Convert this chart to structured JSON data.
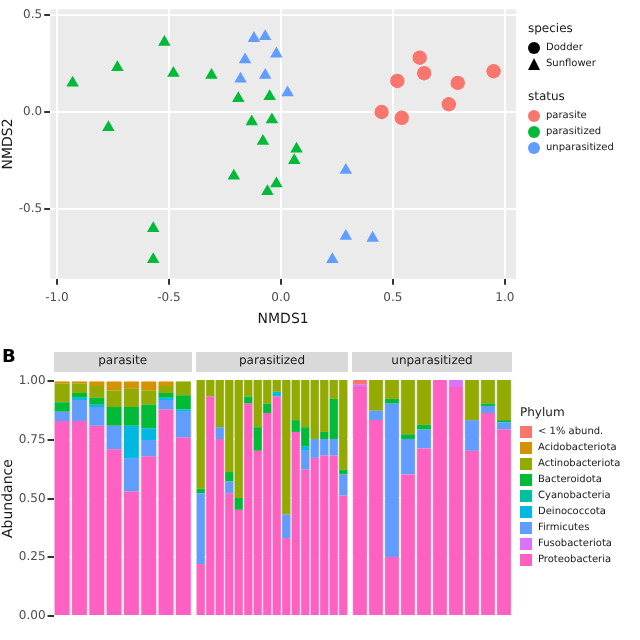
{
  "chart_data": [
    {
      "type": "scatter",
      "xlabel": "NMDS1",
      "ylabel": "NMDS2",
      "legend": "right",
      "legend_title": "status",
      "annotations": [
        "species",
        "Dodder",
        "Sunflower"
      ],
      "grid": true,
      "xlim": [
        -1.03,
        1.05
      ],
      "xticks": [
        {
          "value": -1,
          "label": "-1.0"
        },
        {
          "value": -0.5,
          "label": "-0.5"
        },
        {
          "value": 0,
          "label": "0.0"
        },
        {
          "value": 0.5,
          "label": "0.5"
        },
        {
          "value": 1,
          "label": "1.0"
        }
      ],
      "ylim": [
        -0.86,
        0.53
      ],
      "yticks": [
        {
          "value": -0.5,
          "label": "-0.5"
        },
        {
          "value": 0,
          "label": "0.0"
        },
        {
          "value": 0.5,
          "label": "0.5"
        }
      ],
      "series": [
        {
          "name": "parasite",
          "color": "#f8766d",
          "marker": "circle",
          "x": [
            0.62,
            0.64,
            0.52,
            0.79,
            0.45,
            0.54,
            0.75,
            0.95
          ],
          "values": [
            0.28,
            0.2,
            0.16,
            0.15,
            0,
            -0.03,
            0.04,
            0.21
          ]
        },
        {
          "name": "parasitized",
          "color": "#00ba38",
          "marker": "triangle",
          "x": [
            -0.52,
            -0.73,
            -0.93,
            -0.48,
            -0.31,
            -0.77,
            -0.19,
            -0.05,
            -0.13,
            -0.04,
            -0.08,
            0.07,
            0.06,
            -0.21,
            -0.02,
            -0.06,
            -0.57,
            -0.57
          ],
          "values": [
            0.36,
            0.23,
            0.15,
            0.2,
            0.19,
            -0.08,
            0.07,
            0.08,
            -0.05,
            -0.04,
            -0.15,
            -0.19,
            -0.25,
            -0.33,
            -0.37,
            -0.41,
            -0.6,
            -0.76
          ]
        },
        {
          "name": "unparasitized",
          "color": "#619cff",
          "marker": "triangle",
          "x": [
            -0.12,
            -0.07,
            -0.02,
            -0.16,
            -0.07,
            -0.18,
            0.03,
            0.29,
            0.29,
            0.41,
            0.23
          ],
          "values": [
            0.38,
            0.39,
            0.3,
            0.27,
            0.19,
            0.17,
            0.1,
            -0.3,
            -0.64,
            -0.65,
            -0.76
          ]
        }
      ]
    },
    {
      "type": "bar",
      "stacked": true,
      "title": "parasite",
      "ylabel": "Abundance",
      "annotations": [
        "B"
      ],
      "tick_labels": "y",
      "grid": "y",
      "ylim": [
        0,
        1
      ],
      "yticks": [
        {
          "value": 0,
          "label": "0.00"
        },
        {
          "value": 0.25,
          "label": "0.25"
        },
        {
          "value": 0.5,
          "label": "0.50"
        },
        {
          "value": 0.75,
          "label": "0.75"
        },
        {
          "value": 1,
          "label": "1.00"
        }
      ],
      "categories": [
        null,
        null,
        null,
        null,
        null,
        null,
        null,
        null
      ],
      "series": [
        {
          "color": "#ff61c3",
          "values": [
            0.83,
            0.83,
            0.81,
            0.71,
            0.53,
            0.68,
            0.88,
            0.76
          ]
        },
        {
          "color": "#db72fb",
          "values": [
            0,
            0,
            0,
            0,
            0,
            0,
            0,
            0
          ]
        },
        {
          "color": "#619cff",
          "values": [
            0.04,
            0.09,
            0.08,
            0.1,
            0.14,
            0.07,
            0.04,
            0.11
          ]
        },
        {
          "color": "#00b9e3",
          "values": [
            0,
            0.01,
            0.01,
            0,
            0.14,
            0.05,
            0.01,
            0.01
          ]
        },
        {
          "color": "#00c19f",
          "values": [
            0,
            0,
            0,
            0,
            0,
            0,
            0,
            0
          ]
        },
        {
          "color": "#00ba38",
          "values": [
            0.04,
            0.02,
            0.03,
            0.08,
            0.08,
            0.1,
            0.02,
            0.06
          ]
        },
        {
          "color": "#93aa00",
          "values": [
            0.08,
            0.04,
            0.05,
            0.07,
            0.08,
            0.06,
            0.03,
            0.06
          ]
        },
        {
          "color": "#d39200",
          "values": [
            0.01,
            0.01,
            0.02,
            0.04,
            0.03,
            0.04,
            0.02,
            0
          ]
        },
        {
          "color": "#f8766d",
          "values": [
            0,
            0,
            0,
            0,
            0,
            0,
            0,
            0
          ]
        }
      ]
    },
    {
      "type": "bar",
      "stacked": true,
      "title": "parasitized",
      "tick_labels": false,
      "grid": "y",
      "ylim": [
        0,
        1
      ],
      "yticks": [
        0,
        0.25,
        0.5,
        0.75,
        1
      ],
      "categories": [
        null,
        null,
        null,
        null,
        null,
        null,
        null,
        null,
        null,
        null,
        null,
        null,
        null,
        null,
        null,
        null
      ],
      "series": [
        {
          "color": "#ff61c3",
          "values": [
            0.22,
            0.93,
            0.75,
            0.52,
            0.45,
            0.9,
            0.7,
            0.86,
            0.93,
            0.33,
            0.78,
            0.62,
            0.67,
            0.68,
            0.68,
            0.51
          ]
        },
        {
          "color": "#db72fb",
          "values": [
            0,
            0,
            0,
            0,
            0,
            0,
            0,
            0,
            0,
            0,
            0,
            0,
            0,
            0,
            0,
            0
          ]
        },
        {
          "color": "#619cff",
          "values": [
            0.3,
            0,
            0.05,
            0.05,
            0,
            0,
            0,
            0,
            0,
            0.1,
            0,
            0.08,
            0.08,
            0.07,
            0.07,
            0.09
          ]
        },
        {
          "color": "#00b9e3",
          "values": [
            0,
            0,
            0,
            0,
            0,
            0,
            0,
            0,
            0.02,
            0,
            0,
            0.02,
            0,
            0,
            0,
            0
          ]
        },
        {
          "color": "#00c19f",
          "values": [
            0,
            0,
            0,
            0,
            0,
            0,
            0,
            0,
            0,
            0,
            0,
            0,
            0,
            0,
            0,
            0
          ]
        },
        {
          "color": "#00ba38",
          "values": [
            0.02,
            0,
            0,
            0.04,
            0.05,
            0.03,
            0.1,
            0.04,
            0,
            0,
            0.05,
            0.08,
            0,
            0.03,
            0.17,
            0.02
          ]
        },
        {
          "color": "#93aa00",
          "values": [
            0.46,
            0.07,
            0.2,
            0.39,
            0.5,
            0.07,
            0.2,
            0.1,
            0.05,
            0.57,
            0.17,
            0.2,
            0.25,
            0.22,
            0.08,
            0.38
          ]
        },
        {
          "color": "#d39200",
          "values": [
            0,
            0,
            0,
            0,
            0,
            0,
            0,
            0,
            0,
            0,
            0,
            0,
            0,
            0,
            0,
            0
          ]
        },
        {
          "color": "#f8766d",
          "values": [
            0,
            0,
            0,
            0,
            0,
            0,
            0,
            0,
            0,
            0,
            0,
            0,
            0,
            0,
            0,
            0
          ]
        }
      ]
    },
    {
      "type": "bar",
      "stacked": true,
      "title": "unparasitized",
      "tick_labels": false,
      "grid": "y",
      "legend": "right",
      "legend_title": "Phylum",
      "ylim": [
        0,
        1
      ],
      "yticks": [
        0,
        0.25,
        0.5,
        0.75,
        1
      ],
      "categories": [
        null,
        null,
        null,
        null,
        null,
        null,
        null,
        null,
        null,
        null
      ],
      "series": [
        {
          "name": "Proteobacteria",
          "color": "#ff61c3",
          "values": [
            0.97,
            0.83,
            0.25,
            0.6,
            0.71,
            1,
            0.97,
            0.7,
            0.86,
            0.79
          ]
        },
        {
          "name": "Fusobacteriota",
          "color": "#db72fb",
          "values": [
            0.01,
            0,
            0,
            0,
            0,
            0,
            0.03,
            0,
            0,
            0
          ]
        },
        {
          "name": "Firmicutes",
          "color": "#619cff",
          "values": [
            0,
            0.04,
            0.65,
            0.15,
            0.08,
            0,
            0,
            0.13,
            0.03,
            0.03
          ]
        },
        {
          "name": "Deinococcota",
          "color": "#00b9e3",
          "values": [
            0,
            0,
            0,
            0,
            0,
            0,
            0,
            0,
            0,
            0
          ]
        },
        {
          "name": "Cyanobacteria",
          "color": "#00c19f",
          "values": [
            0,
            0,
            0,
            0,
            0,
            0,
            0,
            0,
            0,
            0
          ]
        },
        {
          "name": "Bacteroidota",
          "color": "#00ba38",
          "values": [
            0,
            0,
            0.02,
            0.02,
            0.02,
            0,
            0,
            0,
            0.01,
            0.01
          ]
        },
        {
          "name": "Actinobacteriota",
          "color": "#93aa00",
          "values": [
            0,
            0.13,
            0.08,
            0.23,
            0.19,
            0,
            0,
            0.17,
            0.1,
            0.17
          ]
        },
        {
          "name": "Acidobacteriota",
          "color": "#d39200",
          "values": [
            0,
            0,
            0,
            0,
            0,
            0,
            0,
            0,
            0,
            0
          ]
        },
        {
          "name": "< 1% abund.",
          "color": "#f8766d",
          "values": [
            0.02,
            0,
            0,
            0,
            0,
            0,
            0,
            0,
            0,
            0
          ]
        }
      ]
    }
  ]
}
